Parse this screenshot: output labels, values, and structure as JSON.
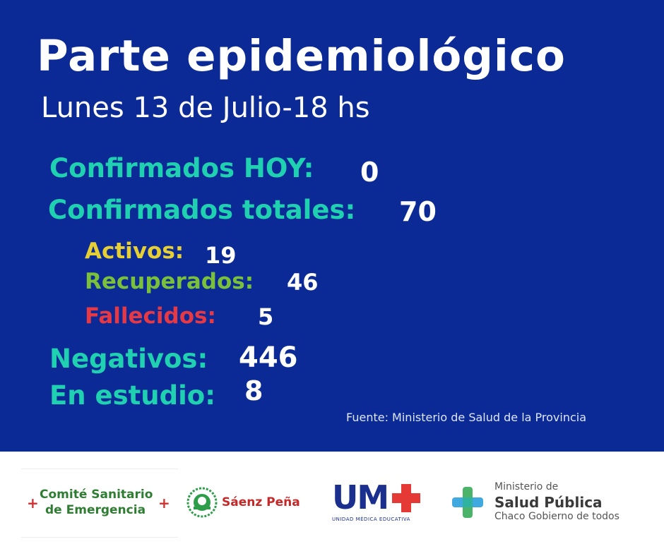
{
  "header": {
    "title": "Parte epidemiológico",
    "subtitle": "Lunes 13 de Julio-18 hs"
  },
  "stats": {
    "confirmados_hoy": {
      "label": "Confirmados HOY:",
      "value": "0"
    },
    "confirmados_totales": {
      "label": "Confirmados totales:",
      "value": "70"
    },
    "activos": {
      "label": "Activos:",
      "value": "19"
    },
    "recuperados": {
      "label": "Recuperados:",
      "value": "46"
    },
    "fallecidos": {
      "label": "Fallecidos:",
      "value": "5"
    },
    "negativos": {
      "label": "Negativos:",
      "value": "446"
    },
    "en_estudio": {
      "label": "En estudio:",
      "value": "8"
    }
  },
  "source": "Fuente: Ministerio de Salud de la Provincia",
  "footer": {
    "comite": {
      "line1": "Comité Sanitario",
      "line2": "de Emergencia"
    },
    "saenz_pena": "Sáenz Peña",
    "ume": {
      "logo": "UM",
      "subtitle": "UNIDAD MÉDICA EDUCATIVA"
    },
    "ministerio": {
      "line1": "Ministerio de",
      "line2": "Salud Pública",
      "line3": "Chaco Gobierno de todos"
    }
  },
  "colors": {
    "background": "#0b2a96",
    "teal": "#1fd1b0",
    "yellow": "#e6cf35",
    "green": "#7bbf3a",
    "red": "#e63946"
  },
  "icons": [
    "cross-icon",
    "cotton-emblem-icon",
    "plus-cross-icon"
  ]
}
